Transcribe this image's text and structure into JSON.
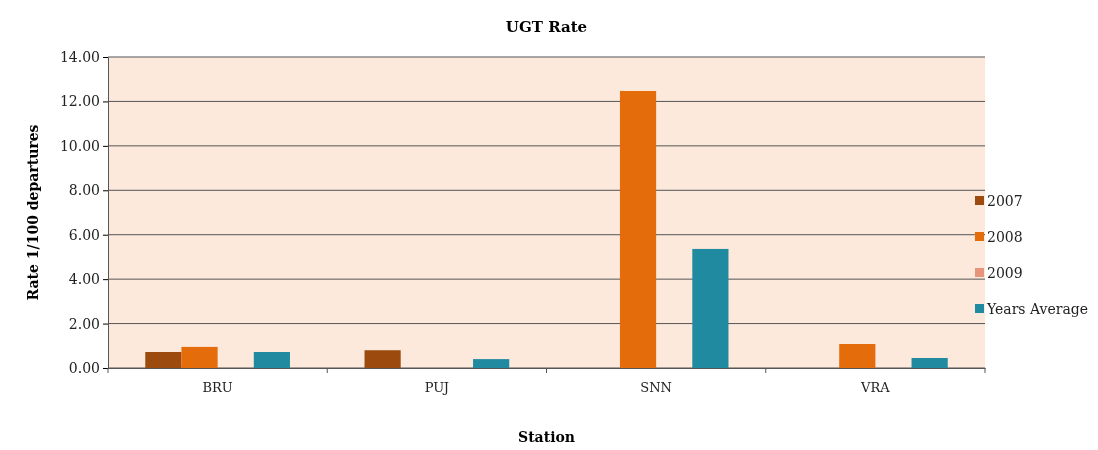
{
  "chart_data": {
    "type": "bar",
    "title": "UGT Rate",
    "xlabel": "Station",
    "ylabel": "Rate 1/100 departures",
    "categories": [
      "BRU",
      "PUJ",
      "SNN",
      "VRA"
    ],
    "series": [
      {
        "name": "2007",
        "color": "#9c4a0e",
        "values": [
          0.72,
          0.8,
          null,
          null
        ]
      },
      {
        "name": "2008",
        "color": "#e46c0a",
        "values": [
          0.95,
          null,
          12.47,
          1.08
        ]
      },
      {
        "name": "2009",
        "color": "#e6957a",
        "values": [
          null,
          null,
          null,
          null
        ]
      },
      {
        "name": "Years Average",
        "color": "#1f8aa0",
        "values": [
          0.72,
          0.4,
          5.36,
          0.45
        ]
      }
    ],
    "ylim": [
      0,
      14
    ],
    "yticks": [
      {
        "value": 0,
        "label": "0.00"
      },
      {
        "value": 2,
        "label": "2.00"
      },
      {
        "value": 4,
        "label": "4.00"
      },
      {
        "value": 6,
        "label": "6.00"
      },
      {
        "value": 8,
        "label": "8.00"
      },
      {
        "value": 10,
        "label": "10.00"
      },
      {
        "value": 12,
        "label": "12.00"
      },
      {
        "value": 14,
        "label": "14.00"
      }
    ],
    "grid": "y",
    "legend": "right"
  }
}
